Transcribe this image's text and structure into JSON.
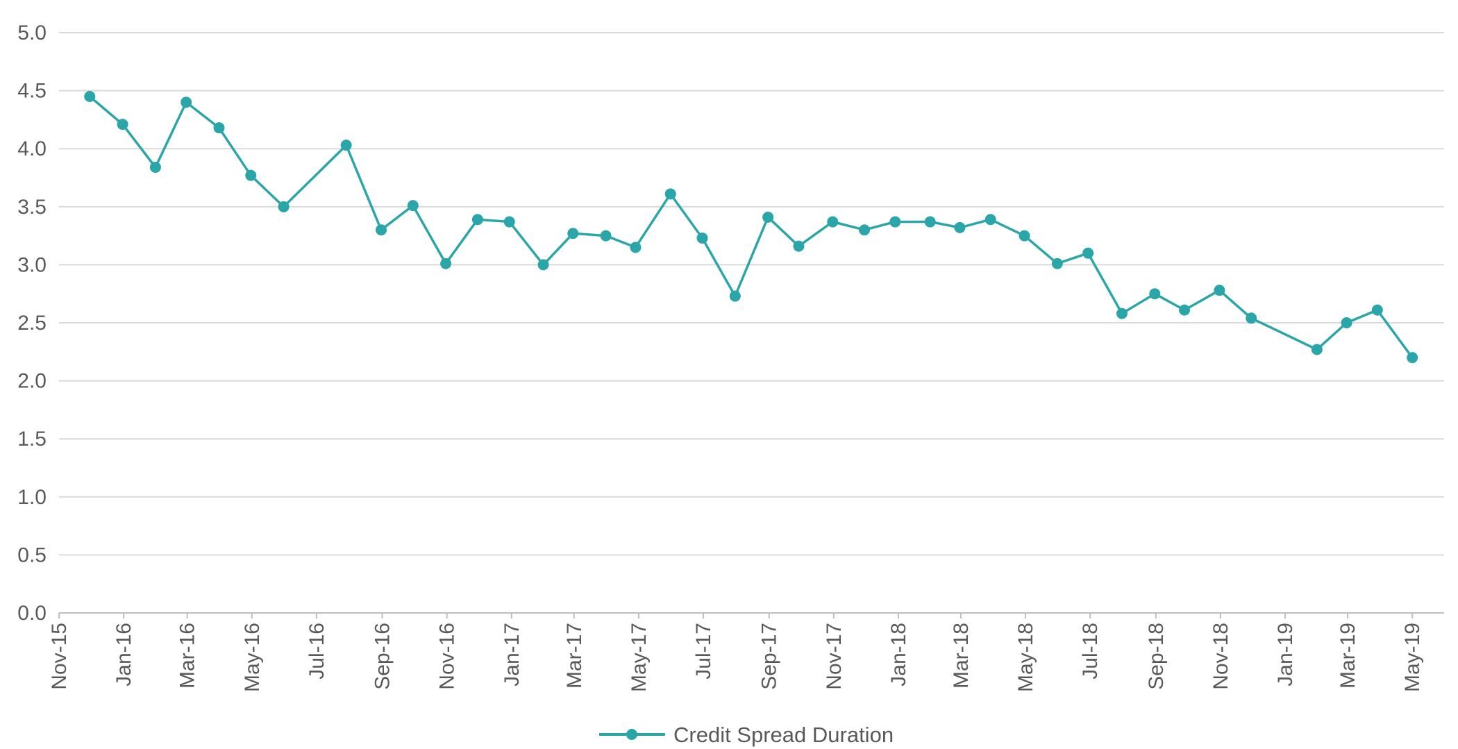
{
  "chart_data": {
    "type": "line",
    "title": "",
    "xlabel": "",
    "ylabel": "",
    "ylim": [
      0,
      5
    ],
    "yticks": [
      "0.0",
      "0.5",
      "1.0",
      "1.5",
      "2.0",
      "2.5",
      "3.0",
      "3.5",
      "4.0",
      "4.5",
      "5.0"
    ],
    "xlim": [
      "2015-11-01",
      "2019-05-31"
    ],
    "xticks": [
      {
        "date": "2015-11-01",
        "label": "Nov-15"
      },
      {
        "date": "2016-01-01",
        "label": "Jan-16"
      },
      {
        "date": "2016-03-01",
        "label": "Mar-16"
      },
      {
        "date": "2016-05-01",
        "label": "May-16"
      },
      {
        "date": "2016-07-01",
        "label": "Jul-16"
      },
      {
        "date": "2016-09-01",
        "label": "Sep-16"
      },
      {
        "date": "2016-11-01",
        "label": "Nov-16"
      },
      {
        "date": "2017-01-01",
        "label": "Jan-17"
      },
      {
        "date": "2017-03-01",
        "label": "Mar-17"
      },
      {
        "date": "2017-05-01",
        "label": "May-17"
      },
      {
        "date": "2017-07-01",
        "label": "Jul-17"
      },
      {
        "date": "2017-09-01",
        "label": "Sep-17"
      },
      {
        "date": "2017-11-01",
        "label": "Nov-17"
      },
      {
        "date": "2018-01-01",
        "label": "Jan-18"
      },
      {
        "date": "2018-03-01",
        "label": "Mar-18"
      },
      {
        "date": "2018-05-01",
        "label": "May-18"
      },
      {
        "date": "2018-07-01",
        "label": "Jul-18"
      },
      {
        "date": "2018-09-01",
        "label": "Sep-18"
      },
      {
        "date": "2018-11-01",
        "label": "Nov-18"
      },
      {
        "date": "2019-01-01",
        "label": "Jan-19"
      },
      {
        "date": "2019-03-01",
        "label": "Mar-19"
      },
      {
        "date": "2019-05-01",
        "label": "May-19"
      }
    ],
    "grid": true,
    "legend_position": "bottom-center",
    "color": "#2BA6A8",
    "series": [
      {
        "name": "Credit Spread Duration",
        "x": [
          "2015-11-30",
          "2015-12-31",
          "2016-01-31",
          "2016-02-29",
          "2016-03-31",
          "2016-04-30",
          "2016-05-31",
          "2016-07-29",
          "2016-08-31",
          "2016-09-30",
          "2016-10-31",
          "2016-11-30",
          "2016-12-30",
          "2017-01-31",
          "2017-02-28",
          "2017-03-31",
          "2017-04-28",
          "2017-05-31",
          "2017-06-30",
          "2017-07-31",
          "2017-08-31",
          "2017-09-29",
          "2017-10-31",
          "2017-11-30",
          "2017-12-29",
          "2018-01-31",
          "2018-02-28",
          "2018-03-29",
          "2018-04-30",
          "2018-05-31",
          "2018-06-29",
          "2018-07-31",
          "2018-08-31",
          "2018-09-28",
          "2018-10-31",
          "2018-11-30",
          "2019-01-31",
          "2019-02-28",
          "2019-03-29",
          "2019-05-01"
        ],
        "values": [
          4.45,
          4.21,
          3.84,
          4.4,
          4.18,
          3.77,
          3.5,
          4.03,
          3.3,
          3.51,
          3.01,
          3.39,
          3.37,
          3.0,
          3.27,
          3.25,
          3.15,
          3.61,
          3.23,
          2.73,
          3.41,
          3.16,
          3.37,
          3.3,
          3.37,
          3.37,
          3.32,
          3.39,
          3.25,
          3.01,
          3.1,
          2.58,
          2.75,
          2.61,
          2.78,
          2.54,
          2.27,
          2.5,
          2.61,
          2.2
        ]
      }
    ]
  }
}
